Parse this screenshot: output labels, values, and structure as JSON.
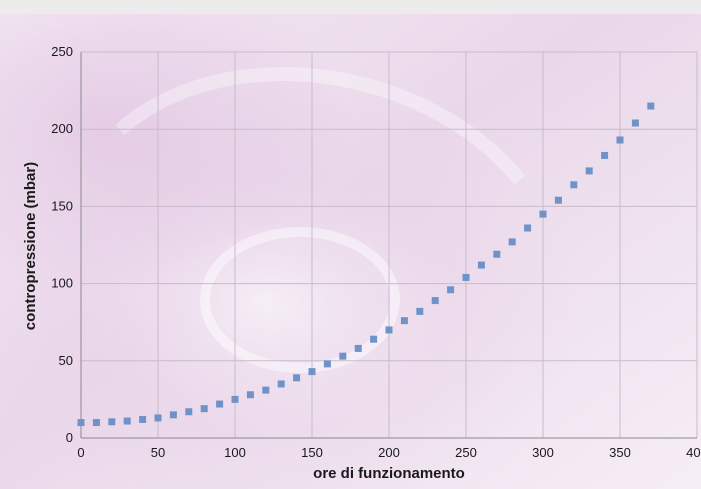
{
  "chart_data": {
    "type": "scatter",
    "title": "",
    "xlabel": "ore di funzionamento",
    "ylabel": "contropressione (mbar)",
    "xlim": [
      0,
      400
    ],
    "ylim": [
      0,
      250
    ],
    "x_ticks": [
      0,
      50,
      100,
      150,
      200,
      250,
      300,
      350,
      400
    ],
    "y_ticks": [
      0,
      50,
      100,
      150,
      200,
      250
    ],
    "grid": true,
    "legend": "none",
    "marker_color": "#6f93c8",
    "series": [
      {
        "x": [
          0,
          10,
          20,
          30,
          40,
          50,
          60,
          70,
          80,
          90,
          100,
          110,
          120,
          130,
          140,
          150,
          160,
          170,
          180,
          190,
          200,
          210,
          220,
          230,
          240,
          250,
          260,
          270,
          280,
          290,
          300,
          310,
          320,
          330,
          340,
          350,
          360,
          370
        ],
        "y": [
          10,
          10,
          10.5,
          11,
          12,
          13,
          15,
          17,
          19,
          22,
          25,
          28,
          31,
          35,
          39,
          43,
          48,
          53,
          58,
          64,
          70,
          76,
          82,
          89,
          96,
          104,
          112,
          119,
          127,
          136,
          145,
          154,
          164,
          173,
          183,
          193,
          204,
          215
        ]
      }
    ]
  }
}
